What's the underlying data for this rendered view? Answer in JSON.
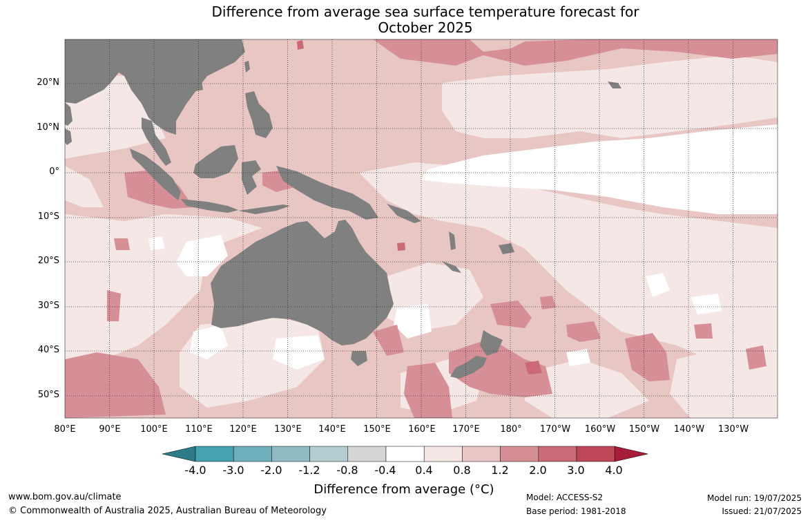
{
  "title_line1": "Difference from average sea surface temperature forecast for",
  "title_line2": "October 2025",
  "lat_labels": [
    "20°N",
    "10°N",
    "0°",
    "10°S",
    "20°S",
    "30°S",
    "40°S",
    "50°S"
  ],
  "lon_labels": [
    "80°E",
    "90°E",
    "100°E",
    "110°E",
    "120°E",
    "130°E",
    "140°E",
    "150°E",
    "160°E",
    "170°E",
    "180°",
    "170°W",
    "160°W",
    "150°W",
    "140°W",
    "130°W"
  ],
  "colorbar": {
    "title": "Difference from average (°C)",
    "ticks": [
      "-4.0",
      "-3.0",
      "-2.0",
      "-1.2",
      "-0.8",
      "-0.4",
      "0.4",
      "0.8",
      "1.2",
      "2.0",
      "3.0",
      "4.0"
    ],
    "colors": [
      "#2e7a86",
      "#46a1b1",
      "#6faebb",
      "#8fbcc4",
      "#b3cdd0",
      "#d5d7d7",
      "#ffffff",
      "#f5e7e6",
      "#e8c6c3",
      "#d68f96",
      "#c96a76",
      "#bf4656",
      "#a51d38"
    ]
  },
  "colors": {
    "land": "#808080",
    "ocean_base": "#e8c6c3"
  },
  "footer": {
    "website": "www.bom.gov.au/climate",
    "copyright": "© Commonwealth of Australia 2025, Australian Bureau of Meteorology",
    "model": "Model: ACCESS-S2",
    "base_period": "Base period: 1981-2018",
    "model_run": "Model run: 19/07/2025",
    "issued": "Issued: 21/07/2025"
  }
}
